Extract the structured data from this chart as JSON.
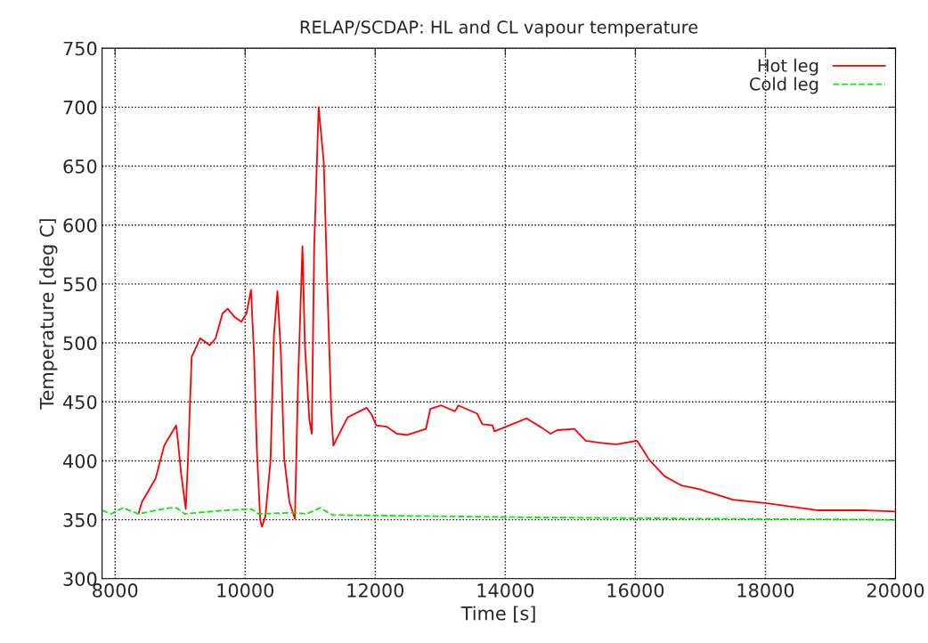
{
  "chart_data": {
    "type": "line",
    "title": "RELAP/SCDAP: HL and CL vapour temperature",
    "xlabel": "Time [s]",
    "ylabel": "Temperature [deg C]",
    "xlim": [
      7800,
      20000
    ],
    "xticks": [
      8000,
      10000,
      12000,
      14000,
      16000,
      18000,
      20000
    ],
    "ylim": [
      300,
      750
    ],
    "yticks": [
      300,
      350,
      400,
      450,
      500,
      550,
      600,
      650,
      700,
      750
    ],
    "grid": true,
    "legend": "top right",
    "series": [
      {
        "name": "Hot leg",
        "color": "#ff0000",
        "line_style": "solid",
        "x": [
          8359,
          8412,
          8623,
          8755,
          8939,
          8966,
          9018,
          9087,
          9124,
          9177,
          9309,
          9456,
          9546,
          9652,
          9731,
          9837,
          9942,
          10021,
          10090,
          10137,
          10179,
          10232,
          10258,
          10311,
          10390,
          10443,
          10496,
          10548,
          10601,
          10680,
          10765,
          10812,
          10881,
          10918,
          10987,
          11024,
          11061,
          11130,
          11209,
          11262,
          11325,
          11357,
          11420,
          11578,
          11868,
          11947,
          12016,
          12174,
          12332,
          12490,
          12779,
          12847,
          13016,
          13226,
          13279,
          13568,
          13647,
          13805,
          13832,
          14011,
          14326,
          14563,
          14695,
          14800,
          15063,
          15237,
          15500,
          15711,
          16026,
          16132,
          16211,
          16447,
          16711,
          16974,
          17500,
          18026,
          18816,
          19553,
          20000
        ],
        "values": [
          355,
          365,
          385,
          413,
          430,
          417,
          388,
          359,
          405,
          488,
          504,
          498,
          504,
          525,
          529,
          522,
          518,
          525,
          545,
          490,
          411,
          350,
          344,
          353,
          400,
          507,
          544,
          493,
          402,
          365,
          351,
          464,
          582,
          499,
          435,
          423,
          580,
          700,
          653,
          551,
          440,
          413,
          420,
          437,
          445,
          439,
          430,
          429,
          423,
          422,
          427,
          444,
          447,
          442,
          447,
          440,
          431,
          430,
          425,
          429,
          436,
          428,
          423,
          426,
          427,
          417,
          415,
          414,
          417,
          408,
          401,
          387,
          379,
          376,
          367,
          364,
          358,
          358,
          357
        ]
      },
      {
        "name": "Cold leg",
        "color": "#00ee00",
        "line_style": "dashed",
        "x": [
          7800,
          7937,
          8121,
          8359,
          8728,
          8834,
          8950,
          9071,
          9678,
          10100,
          10206,
          10786,
          10944,
          11156,
          11341,
          12200,
          14437,
          16753,
          20000
        ],
        "values": [
          358,
          355,
          360,
          355,
          359,
          360,
          360,
          355,
          358,
          359,
          355,
          356,
          355,
          360,
          354,
          353.5,
          352,
          351,
          350
        ]
      }
    ]
  }
}
